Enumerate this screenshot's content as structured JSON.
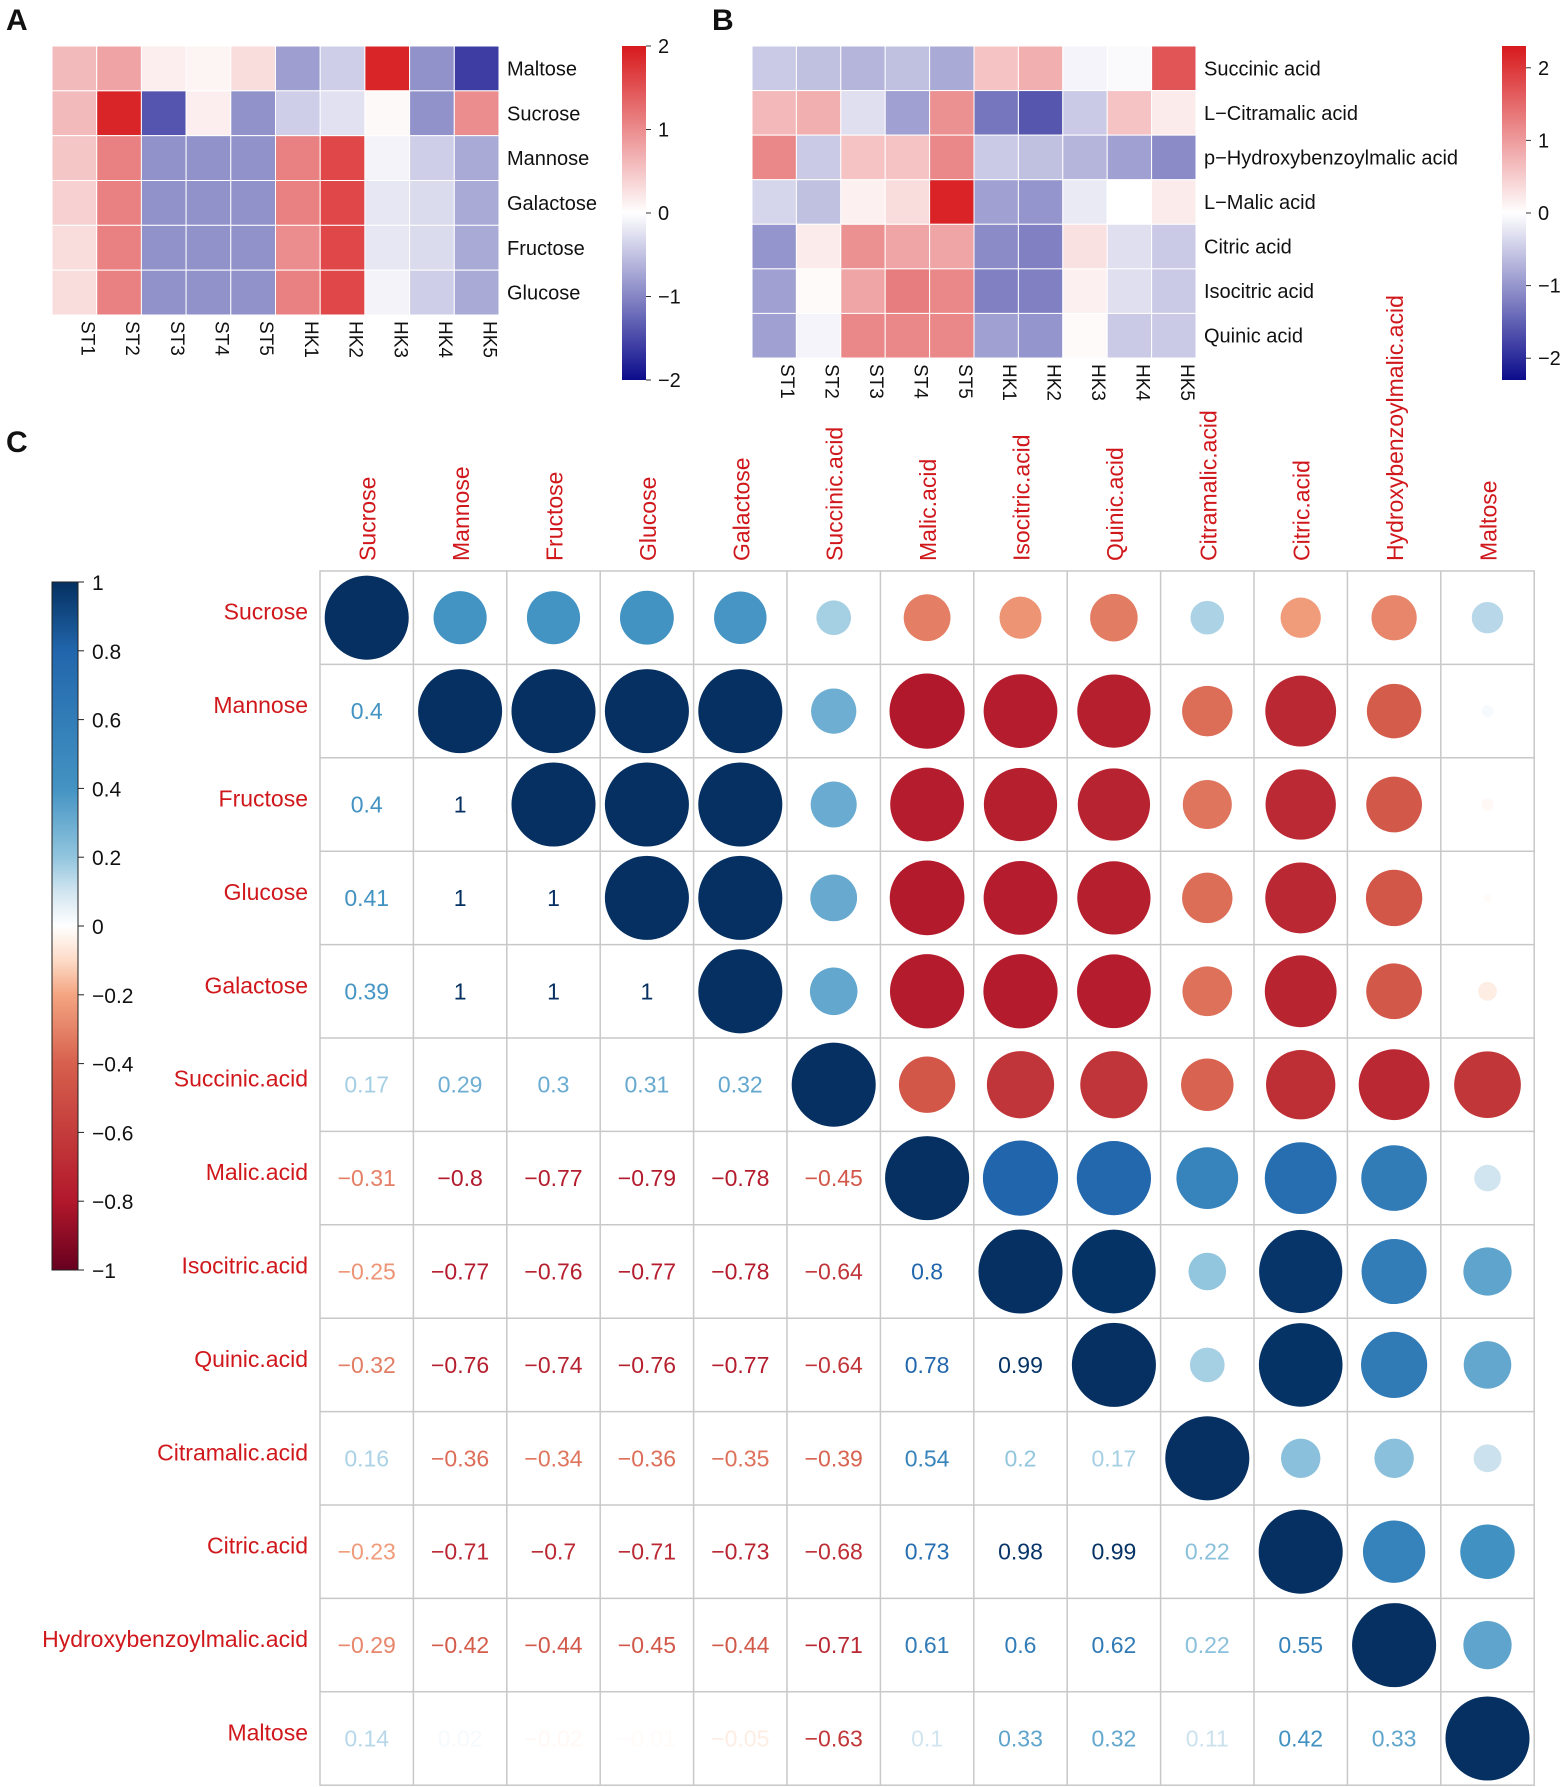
{
  "panels": {
    "a": "A",
    "b": "B",
    "c": "C"
  },
  "colors": {
    "pos": "#053061",
    "neg": "#67001f",
    "hm_high": "#d7191c",
    "hm_low": "#0c0c8c",
    "label_red": "#d0181c",
    "grid": "#c8c8c8"
  },
  "chart_data": [
    {
      "type": "heatmap",
      "panel": "A",
      "columns": [
        "ST1",
        "ST2",
        "ST3",
        "ST4",
        "ST5",
        "HK1",
        "HK2",
        "HK3",
        "HK4",
        "HK5"
      ],
      "rows": [
        "Maltose",
        "Sucrose",
        "Mannose",
        "Galactose",
        "Fructose",
        "Glucose"
      ],
      "values": [
        [
          0.6,
          0.8,
          0.15,
          0.1,
          0.3,
          -0.8,
          -0.4,
          1.9,
          -0.9,
          -1.6
        ],
        [
          0.6,
          1.9,
          -1.4,
          0.15,
          -0.9,
          -0.4,
          -0.25,
          0.05,
          -0.9,
          1.0
        ],
        [
          0.5,
          1.1,
          -0.9,
          -0.9,
          -0.9,
          1.1,
          1.6,
          -0.1,
          -0.4,
          -0.7
        ],
        [
          0.4,
          1.1,
          -0.9,
          -0.9,
          -0.9,
          1.1,
          1.6,
          -0.2,
          -0.3,
          -0.7
        ],
        [
          0.3,
          1.1,
          -0.9,
          -0.9,
          -0.9,
          1.0,
          1.6,
          -0.2,
          -0.3,
          -0.7
        ],
        [
          0.3,
          1.1,
          -0.9,
          -0.9,
          -0.9,
          1.1,
          1.6,
          -0.1,
          -0.4,
          -0.7
        ]
      ],
      "scale_min": -2,
      "scale_max": 2,
      "legend_ticks": [
        "2",
        "1",
        "0",
        "−1",
        "−2"
      ]
    },
    {
      "type": "heatmap",
      "panel": "B",
      "columns": [
        "ST1",
        "ST2",
        "ST3",
        "ST4",
        "ST5",
        "HK1",
        "HK2",
        "HK3",
        "HK4",
        "HK5"
      ],
      "rows": [
        "Succinic acid",
        "L−Citramalic acid",
        "p−Hydroxybenzoylmalic acid",
        "L−Malic acid",
        "Citric acid",
        "Isocitric acid",
        "Quinic acid"
      ],
      "values": [
        [
          -0.5,
          -0.6,
          -0.7,
          -0.6,
          -0.8,
          0.6,
          0.8,
          -0.1,
          -0.05,
          1.7
        ],
        [
          0.7,
          0.8,
          -0.3,
          -0.9,
          1.1,
          -1.3,
          -1.6,
          -0.5,
          0.6,
          0.2
        ],
        [
          1.2,
          -0.5,
          0.6,
          0.6,
          1.2,
          -0.5,
          -0.6,
          -0.7,
          -0.9,
          -1.1
        ],
        [
          -0.4,
          -0.6,
          0.15,
          0.35,
          2.2,
          -0.9,
          -1.0,
          -0.2,
          0.0,
          0.2
        ],
        [
          -1.0,
          0.2,
          1.1,
          0.9,
          0.9,
          -1.1,
          -1.2,
          0.3,
          -0.3,
          -0.5
        ],
        [
          -0.9,
          0.05,
          0.9,
          1.3,
          1.2,
          -1.2,
          -1.2,
          0.15,
          -0.3,
          -0.5
        ],
        [
          -0.9,
          -0.1,
          1.2,
          1.2,
          1.2,
          -0.9,
          -1.0,
          0.05,
          -0.5,
          -0.5
        ]
      ],
      "scale_min": -2.3,
      "scale_max": 2.3,
      "legend_ticks": [
        "2",
        "1",
        "0",
        "−1",
        "−2"
      ]
    },
    {
      "type": "correlation_matrix",
      "panel": "C",
      "variables": [
        "Sucrose",
        "Mannose",
        "Fructose",
        "Glucose",
        "Galactose",
        "Succinic.acid",
        "Malic.acid",
        "Isocitric.acid",
        "Quinic.acid",
        "Citramalic.acid",
        "Citric.acid",
        "Hydroxybenzoylmalic.acid",
        "Maltose"
      ],
      "lower_labels": [
        [],
        [
          "0.4"
        ],
        [
          "0.4",
          "1"
        ],
        [
          "0.41",
          "1",
          "1"
        ],
        [
          "0.39",
          "1",
          "1",
          "1"
        ],
        [
          "0.17",
          "0.29",
          "0.3",
          "0.31",
          "0.32"
        ],
        [
          "−0.31",
          "−0.8",
          "−0.77",
          "−0.79",
          "−0.78",
          "−0.45"
        ],
        [
          "−0.25",
          "−0.77",
          "−0.76",
          "−0.77",
          "−0.78",
          "−0.64",
          "0.8"
        ],
        [
          "−0.32",
          "−0.76",
          "−0.74",
          "−0.76",
          "−0.77",
          "−0.64",
          "0.78",
          "0.99"
        ],
        [
          "0.16",
          "−0.36",
          "−0.34",
          "−0.36",
          "−0.35",
          "−0.39",
          "0.54",
          "0.2",
          "0.17"
        ],
        [
          "−0.23",
          "−0.71",
          "−0.7",
          "−0.71",
          "−0.73",
          "−0.68",
          "0.73",
          "0.98",
          "0.99",
          "0.22"
        ],
        [
          "−0.29",
          "−0.42",
          "−0.44",
          "−0.45",
          "−0.44",
          "−0.71",
          "0.61",
          "0.6",
          "0.62",
          "0.22",
          "0.55"
        ],
        [
          "0.14",
          "0.02",
          "−0.02",
          "−0.01",
          "−0.05",
          "−0.63",
          "0.1",
          "0.33",
          "0.32",
          "0.11",
          "0.42",
          "0.33"
        ]
      ],
      "legend_ticks": [
        "1",
        "0.8",
        "0.6",
        "0.4",
        "0.2",
        "0",
        "−0.2",
        "−0.4",
        "−0.6",
        "−0.8",
        "−1"
      ],
      "scale_min": -1,
      "scale_max": 1
    }
  ]
}
